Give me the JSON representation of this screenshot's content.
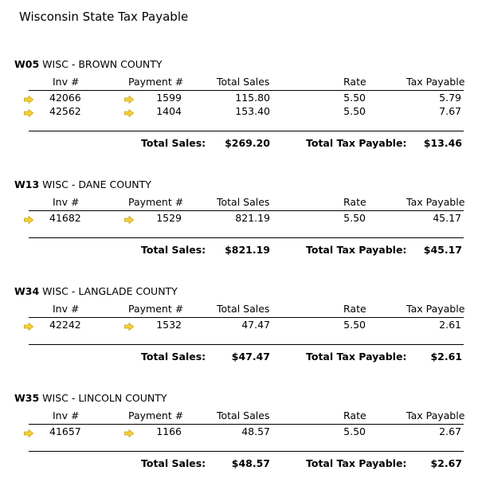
{
  "title": "Wisconsin State Tax Payable",
  "colors": {
    "arrow_fill": "#f5d23a",
    "arrow_stroke": "#c8a10d"
  },
  "icons": {
    "row_arrow": "right-arrow-icon"
  },
  "columns": {
    "inv": "Inv #",
    "payment": "Payment #",
    "total_sales": "Total Sales",
    "rate": "Rate",
    "tax_payable": "Tax Payable"
  },
  "labels": {
    "total_sales": "Total Sales:",
    "total_tax_payable": "Total Tax Payable:"
  },
  "sections": [
    {
      "code": "W05",
      "name": "WISC - BROWN COUNTY",
      "rows": [
        {
          "inv": "42066",
          "payment": "1599",
          "total_sales": "115.80",
          "rate": "5.50",
          "tax": "5.79"
        },
        {
          "inv": "42562",
          "payment": "1404",
          "total_sales": "153.40",
          "rate": "5.50",
          "tax": "7.67"
        }
      ],
      "total_sales": "$269.20",
      "total_tax": "$13.46"
    },
    {
      "code": "W13",
      "name": "WISC - DANE COUNTY",
      "rows": [
        {
          "inv": "41682",
          "payment": "1529",
          "total_sales": "821.19",
          "rate": "5.50",
          "tax": "45.17"
        }
      ],
      "total_sales": "$821.19",
      "total_tax": "$45.17"
    },
    {
      "code": "W34",
      "name": "WISC - LANGLADE COUNTY",
      "rows": [
        {
          "inv": "42242",
          "payment": "1532",
          "total_sales": "47.47",
          "rate": "5.50",
          "tax": "2.61"
        }
      ],
      "total_sales": "$47.47",
      "total_tax": "$2.61"
    },
    {
      "code": "W35",
      "name": "WISC - LINCOLN COUNTY",
      "rows": [
        {
          "inv": "41657",
          "payment": "1166",
          "total_sales": "48.57",
          "rate": "5.50",
          "tax": "2.67"
        }
      ],
      "total_sales": "$48.57",
      "total_tax": "$2.67"
    }
  ]
}
